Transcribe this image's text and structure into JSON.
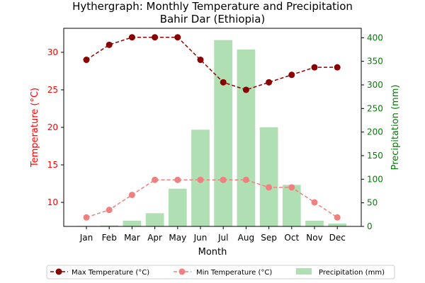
{
  "chart_data": {
    "type": "bar",
    "title": "Hythergraph: Monthly Temperature and Precipitation",
    "subtitle": "Bahir Dar (Ethiopia)",
    "xlabel": "Month",
    "ylabel_left": "Temperature (°C)",
    "ylabel_right": "Precipitation (mm)",
    "categories": [
      "Jan",
      "Feb",
      "Mar",
      "Apr",
      "May",
      "Jun",
      "Jul",
      "Aug",
      "Sep",
      "Oct",
      "Nov",
      "Dec"
    ],
    "ylim_left": [
      6.8,
      33.2
    ],
    "ylim_right": [
      0,
      420
    ],
    "yticks_left": [
      10,
      15,
      20,
      25,
      30
    ],
    "yticks_right": [
      0,
      50,
      100,
      150,
      200,
      250,
      300,
      350,
      400
    ],
    "grid": false,
    "legend_placement": "bottom-center",
    "series": [
      {
        "name": "Max Temperature (°C)",
        "type": "line",
        "axis": "left",
        "color": "#8b0000",
        "style": "dashed",
        "marker": "circle",
        "values": [
          29,
          31,
          32,
          32,
          32,
          29,
          26,
          25,
          26,
          27,
          28,
          28
        ]
      },
      {
        "name": "Min Temperature (°C)",
        "type": "line",
        "axis": "left",
        "color": "#f08080",
        "style": "dashed",
        "marker": "circle",
        "values": [
          8,
          9,
          11,
          13,
          13,
          13,
          13,
          13,
          12,
          12,
          10,
          8
        ]
      },
      {
        "name": "Precipitation (mm)",
        "type": "bar",
        "axis": "right",
        "color": "#3cb043",
        "opacity": 0.4,
        "values": [
          1,
          2,
          12,
          28,
          80,
          205,
          395,
          375,
          210,
          88,
          12,
          6
        ]
      }
    ],
    "colors": {
      "left_axis": "#ff0000",
      "right_axis": "#008000"
    }
  }
}
